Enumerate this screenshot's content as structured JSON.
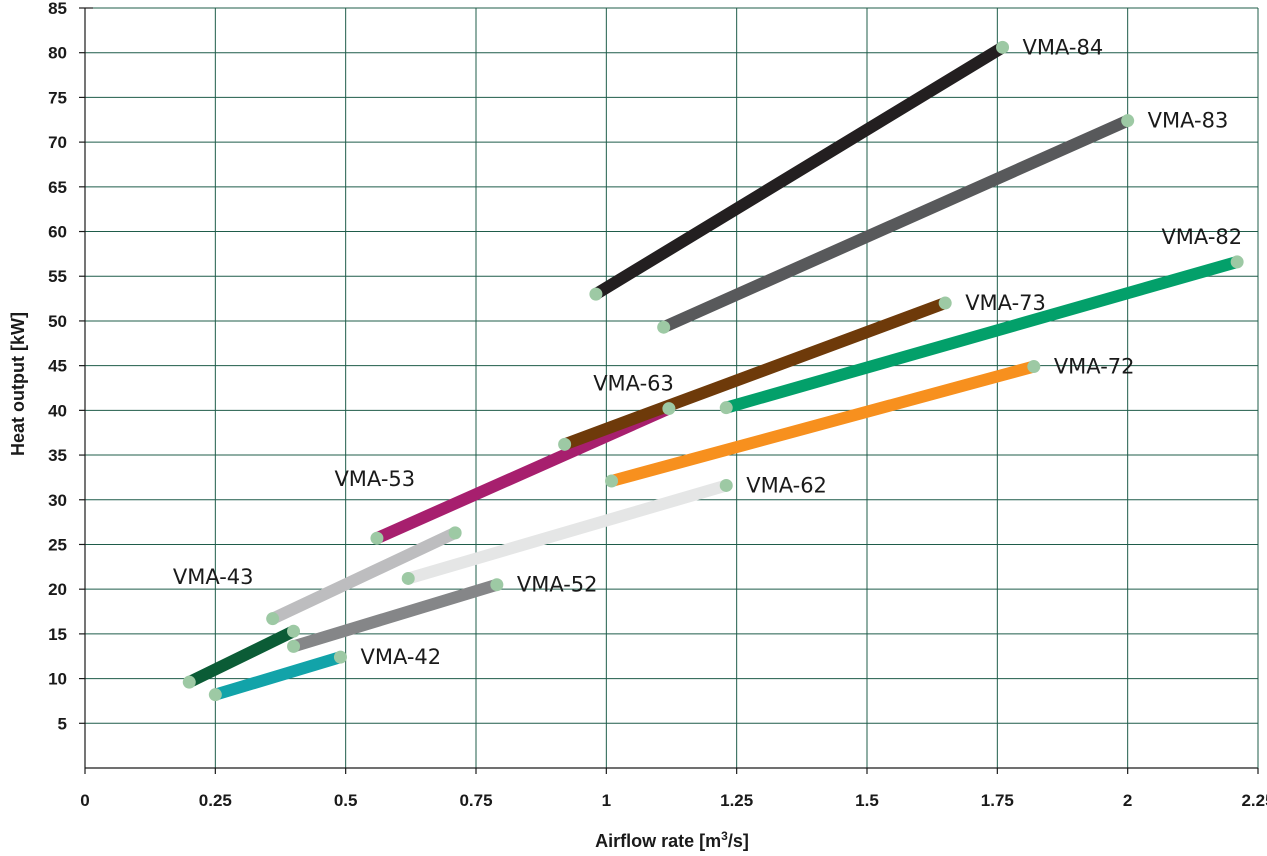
{
  "chart_data": {
    "type": "line",
    "xlabel": "Airflow rate [m",
    "xlabel_sup": "3",
    "xlabel_tail": "/s]",
    "ylabel": "Heat output [kW]",
    "xlim": [
      0,
      2.25
    ],
    "ylim": [
      0,
      85
    ],
    "x_ticks": [
      {
        "value": 0,
        "label": "0"
      },
      {
        "value": 0.25,
        "label": "0.25"
      },
      {
        "value": 0.5,
        "label": "0.5"
      },
      {
        "value": 0.75,
        "label": "0.75"
      },
      {
        "value": 1,
        "label": "1"
      },
      {
        "value": 1.25,
        "label": "1.25"
      },
      {
        "value": 1.5,
        "label": "1.5"
      },
      {
        "value": 1.75,
        "label": "1.75"
      },
      {
        "value": 2,
        "label": "2"
      },
      {
        "value": 2.25,
        "label": "2.25"
      }
    ],
    "y_ticks": [
      {
        "value": 5,
        "label": "5"
      },
      {
        "value": 10,
        "label": "10"
      },
      {
        "value": 15,
        "label": "15"
      },
      {
        "value": 20,
        "label": "20"
      },
      {
        "value": 25,
        "label": "25"
      },
      {
        "value": 30,
        "label": "30"
      },
      {
        "value": 35,
        "label": "35"
      },
      {
        "value": 40,
        "label": "40"
      },
      {
        "value": 45,
        "label": "45"
      },
      {
        "value": 50,
        "label": "50"
      },
      {
        "value": 55,
        "label": "55"
      },
      {
        "value": 60,
        "label": "60"
      },
      {
        "value": 65,
        "label": "65"
      },
      {
        "value": 70,
        "label": "70"
      },
      {
        "value": 75,
        "label": "75"
      },
      {
        "value": 80,
        "label": "80"
      },
      {
        "value": 85,
        "label": "85"
      }
    ],
    "grid": true,
    "marker_color": "#9dc9a4",
    "series": [
      {
        "name": "VMA-42",
        "color": "#12a3a9",
        "points": [
          [
            0.25,
            8.2
          ],
          [
            0.49,
            12.4
          ]
        ],
        "label_anchor": "end-right"
      },
      {
        "name": "VMA-43",
        "color": "#0b5c36",
        "points": [
          [
            0.2,
            9.6
          ],
          [
            0.4,
            15.3
          ]
        ],
        "label_anchor": "upper-left"
      },
      {
        "name": "VMA-52",
        "color": "#858688",
        "points": [
          [
            0.4,
            13.6
          ],
          [
            0.79,
            20.5
          ]
        ],
        "label_anchor": "end-right"
      },
      {
        "name": "VMA-53",
        "color": "#bdbdbf",
        "points": [
          [
            0.36,
            16.7
          ],
          [
            0.71,
            26.3
          ]
        ],
        "label_anchor": "upper-left"
      },
      {
        "name": "VMA-62",
        "color": "#e5e6e6",
        "points": [
          [
            0.62,
            21.2
          ],
          [
            1.23,
            31.6
          ]
        ],
        "label_anchor": "end-right"
      },
      {
        "name": "VMA-63",
        "color": "#a71f6e",
        "points": [
          [
            0.56,
            25.7
          ],
          [
            1.12,
            40.2
          ]
        ],
        "label_anchor": "end-above"
      },
      {
        "name": "VMA-72",
        "color": "#f7901e",
        "points": [
          [
            1.01,
            32.1
          ],
          [
            1.82,
            44.9
          ]
        ],
        "label_anchor": "end-right"
      },
      {
        "name": "VMA-73",
        "color": "#6e3a0a",
        "points": [
          [
            0.92,
            36.2
          ],
          [
            1.65,
            52.0
          ]
        ],
        "label_anchor": "end-right"
      },
      {
        "name": "VMA-82",
        "color": "#03a06a",
        "points": [
          [
            1.23,
            40.3
          ],
          [
            2.21,
            56.6
          ]
        ],
        "label_anchor": "end-above"
      },
      {
        "name": "VMA-83",
        "color": "#58595b",
        "points": [
          [
            1.11,
            49.3
          ],
          [
            2.0,
            72.4
          ]
        ],
        "label_anchor": "end-right"
      },
      {
        "name": "VMA-84",
        "color": "#231f20",
        "points": [
          [
            0.98,
            53.0
          ],
          [
            1.76,
            80.6
          ]
        ],
        "label_anchor": "end-right"
      }
    ]
  }
}
